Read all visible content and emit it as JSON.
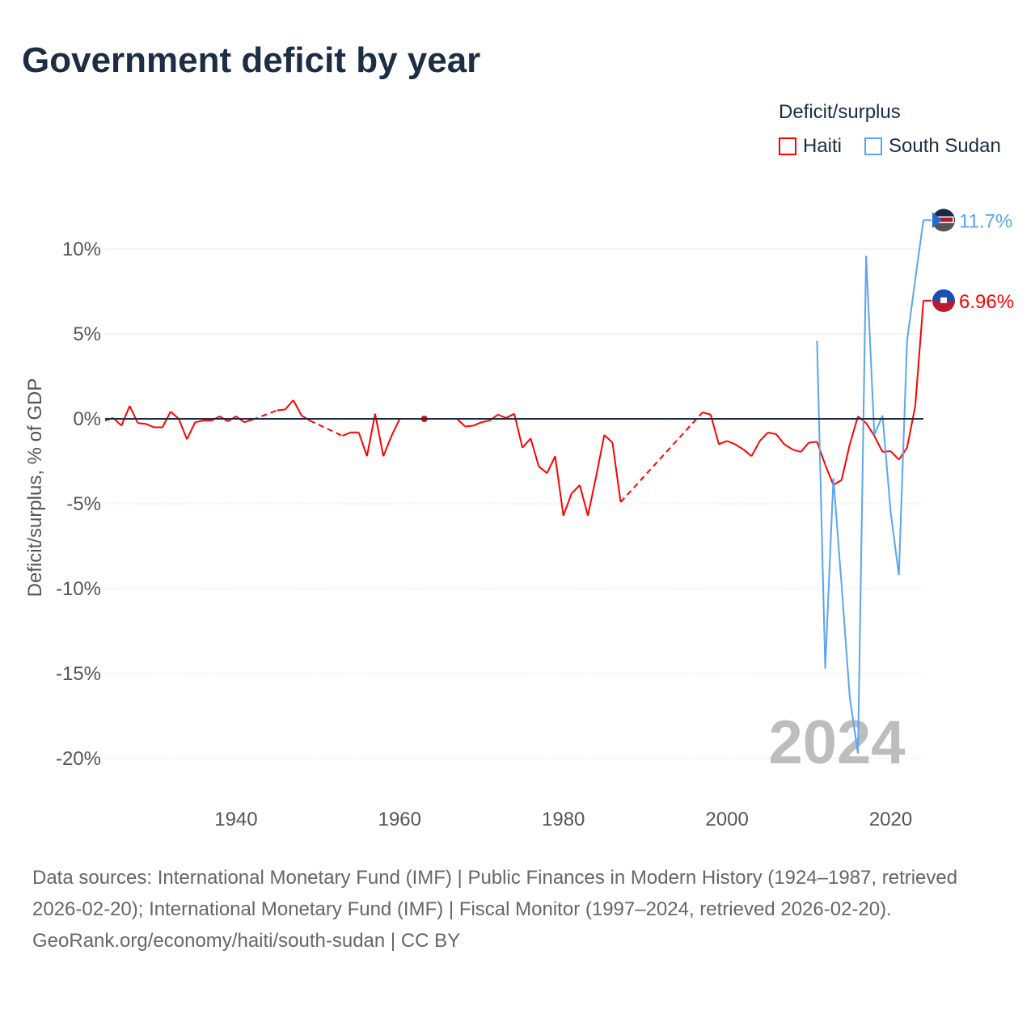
{
  "title": "Government deficit by year",
  "legend": {
    "title": "Deficit/surplus",
    "items": [
      {
        "label": "Haiti",
        "color": "#ff0000"
      },
      {
        "label": "South Sudan",
        "color": "#5aa5ee"
      }
    ]
  },
  "footer": {
    "sources": "Data sources: International Monetary Fund (IMF) | Public Finances in Modern History (1924–1987, retrieved 2026-02-20); International Monetary Fund (IMF) | Fiscal Monitor (1997–2024, retrieved 2026-02-20).",
    "credit": "GeoRank.org/economy/haiti/south-sudan | CC BY"
  },
  "chart_data": {
    "type": "line",
    "title": "Government deficit by year",
    "xlabel": "",
    "ylabel": "Deficit/surplus, % of GDP",
    "xlim": [
      1924,
      2024
    ],
    "ylim": [
      -20,
      10
    ],
    "x_ticks": [
      "1940",
      "1960",
      "1980",
      "2000",
      "2020"
    ],
    "x_tick_values": [
      1940,
      1960,
      1980,
      2000,
      2020
    ],
    "y_ticks": [
      "10%",
      "5%",
      "0%",
      "-5%",
      "-10%",
      "-15%",
      "-20%"
    ],
    "y_tick_values": [
      10,
      5,
      0,
      -5,
      -10,
      -15,
      -20
    ],
    "grid": true,
    "legend_position": "top-right",
    "year_label": "2024",
    "series": [
      {
        "name": "Haiti",
        "color": "#ff0000",
        "end_label": "6.96%",
        "points": [
          [
            1924,
            -0.1
          ],
          [
            1925,
            0.05
          ],
          [
            1926,
            -0.4
          ],
          [
            1927,
            0.76
          ],
          [
            1928,
            -0.25
          ],
          [
            1929,
            -0.3
          ],
          [
            1930,
            -0.5
          ],
          [
            1931,
            -0.5
          ],
          [
            1932,
            0.43
          ],
          [
            1933,
            0
          ],
          [
            1934,
            -1.2
          ],
          [
            1935,
            -0.2
          ],
          [
            1936,
            -0.1
          ],
          [
            1937,
            -0.1
          ],
          [
            1938,
            0.15
          ],
          [
            1939,
            -0.15
          ],
          [
            1940,
            0.15
          ],
          [
            1941,
            -0.2
          ],
          [
            1942,
            -0.05
          ],
          [
            1945,
            0.5
          ],
          [
            1946,
            0.55
          ],
          [
            1947,
            1.1
          ],
          [
            1948,
            0.2
          ],
          [
            1949,
            -0.1
          ],
          [
            1953,
            -1.0
          ],
          [
            1954,
            -0.8
          ],
          [
            1955,
            -0.8
          ],
          [
            1956,
            -2.2
          ],
          [
            1957,
            0.3
          ],
          [
            1958,
            -2.2
          ],
          [
            1959,
            -1.0
          ],
          [
            1960,
            0
          ],
          [
            1961,
            0
          ],
          [
            1963,
            0
          ],
          [
            1965,
            0
          ],
          [
            1966,
            0
          ],
          [
            1967,
            0
          ],
          [
            1968,
            -0.45
          ],
          [
            1969,
            -0.4
          ],
          [
            1970,
            -0.2
          ],
          [
            1971,
            -0.1
          ],
          [
            1972,
            0.25
          ],
          [
            1973,
            0.05
          ],
          [
            1974,
            0.3
          ],
          [
            1975,
            -1.7
          ],
          [
            1976,
            -1.15
          ],
          [
            1977,
            -2.8
          ],
          [
            1978,
            -3.2
          ],
          [
            1979,
            -2.2
          ],
          [
            1980,
            -5.7
          ],
          [
            1981,
            -4.4
          ],
          [
            1982,
            -3.9
          ],
          [
            1983,
            -5.7
          ],
          [
            1984,
            -3.4
          ],
          [
            1985,
            -0.95
          ],
          [
            1986,
            -1.4
          ],
          [
            1987,
            -4.9
          ],
          [
            1997,
            0.38
          ],
          [
            1998,
            0.25
          ],
          [
            1999,
            -1.5
          ],
          [
            2000,
            -1.3
          ],
          [
            2001,
            -1.5
          ],
          [
            2002,
            -1.8
          ],
          [
            2003,
            -2.2
          ],
          [
            2004,
            -1.3
          ],
          [
            2005,
            -0.8
          ],
          [
            2006,
            -0.9
          ],
          [
            2007,
            -1.5
          ],
          [
            2008,
            -1.8
          ],
          [
            2009,
            -1.95
          ],
          [
            2010,
            -1.4
          ],
          [
            2011,
            -1.35
          ],
          [
            2012,
            -2.7
          ],
          [
            2013,
            -3.9
          ],
          [
            2014,
            -3.6
          ],
          [
            2015,
            -1.5
          ],
          [
            2016,
            0.15
          ],
          [
            2017,
            -0.25
          ],
          [
            2018,
            -1.0
          ],
          [
            2019,
            -1.95
          ],
          [
            2020,
            -1.9
          ],
          [
            2021,
            -2.4
          ],
          [
            2022,
            -1.7
          ],
          [
            2023,
            0.75
          ],
          [
            2024,
            6.96
          ]
        ]
      },
      {
        "name": "South Sudan",
        "color": "#5aa5ee",
        "end_label": "11.7%",
        "points": [
          [
            2011,
            4.6
          ],
          [
            2012,
            -14.7
          ],
          [
            2013,
            -3.5
          ],
          [
            2014,
            -9.8
          ],
          [
            2015,
            -16.4
          ],
          [
            2016,
            -19.7
          ],
          [
            2017,
            9.6
          ],
          [
            2018,
            -0.95
          ],
          [
            2019,
            0.2
          ],
          [
            2020,
            -5.5
          ],
          [
            2021,
            -9.2
          ],
          [
            2022,
            4.6
          ],
          [
            2023,
            8.2
          ],
          [
            2024,
            11.7
          ]
        ]
      }
    ]
  }
}
